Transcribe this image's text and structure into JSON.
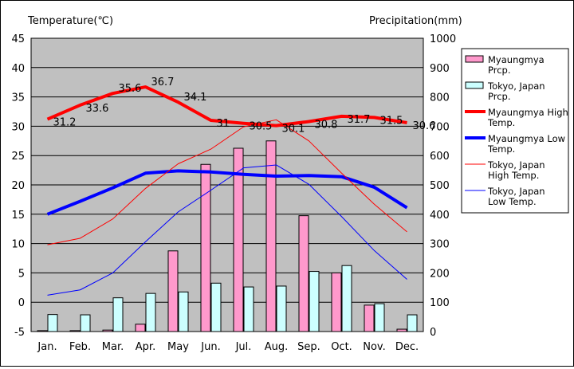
{
  "chart_data": {
    "type": "bar+line",
    "left_axis_title": "Temperature(℃)",
    "right_axis_title": "Precipitation(mm)",
    "left_ylim": [
      -5,
      45
    ],
    "right_ylim": [
      0,
      1000
    ],
    "left_ticks": [
      "45",
      "40",
      "35",
      "30",
      "25",
      "20",
      "15",
      "10",
      "5",
      "0",
      "-5"
    ],
    "right_ticks": [
      "1000",
      "900",
      "800",
      "700",
      "600",
      "500",
      "400",
      "300",
      "200",
      "100",
      "0"
    ],
    "categories": [
      "Jan.",
      "Feb.",
      "Mar.",
      "Apr.",
      "May",
      "Jun.",
      "Jul.",
      "Aug.",
      "Sep.",
      "Oct.",
      "Nov.",
      "Dec."
    ],
    "precipitation": [
      {
        "name": "Myaungmya Prcp.",
        "color": "#ff99cc",
        "values": [
          3,
          3,
          5,
          25,
          275,
          570,
          625,
          650,
          395,
          200,
          90,
          8
        ]
      },
      {
        "name": "Tokyo, Japan Prcp.",
        "color": "#ccffff",
        "values": [
          58,
          57,
          115,
          130,
          135,
          165,
          152,
          155,
          205,
          225,
          95,
          57
        ]
      }
    ],
    "temperature": [
      {
        "name": "Myaungmya High Temp.",
        "color": "#ff0000",
        "width": 4,
        "labels": true,
        "values": [
          31.2,
          33.6,
          35.6,
          36.7,
          34.1,
          31,
          30.5,
          30.1,
          30.8,
          31.7,
          31.5,
          30.6
        ]
      },
      {
        "name": "Myaungmya Low Temp.",
        "color": "#0000ff",
        "width": 4,
        "labels": false,
        "values": [
          15,
          17.2,
          19.5,
          22,
          22.4,
          22.2,
          21.8,
          21.5,
          21.6,
          21.4,
          19.6,
          16.1
        ]
      },
      {
        "name": "Tokyo, Japan High Temp.",
        "color": "#ff0000",
        "width": 1,
        "labels": false,
        "values": [
          9.8,
          10.9,
          14.2,
          19.4,
          23.6,
          26.1,
          29.9,
          31.1,
          27.5,
          22.0,
          16.7,
          12.0
        ]
      },
      {
        "name": "Tokyo, Japan Low Temp.",
        "color": "#0000ff",
        "width": 1,
        "labels": false,
        "values": [
          1.2,
          2.1,
          5.0,
          10.3,
          15.4,
          19.1,
          22.9,
          23.4,
          20.1,
          14.6,
          8.8,
          3.9
        ]
      }
    ],
    "legend": [
      {
        "name": "Myaungmya Prcp.",
        "lines": [
          "Myaungmya",
          "Prcp."
        ],
        "kind": "box",
        "color": "#ff99cc"
      },
      {
        "name": "Tokyo, Japan Prcp.",
        "lines": [
          "Tokyo, Japan",
          "Prcp."
        ],
        "kind": "box",
        "color": "#ccffff"
      },
      {
        "name": "Myaungmya High Temp.",
        "lines": [
          "Myaungmya High",
          "Temp."
        ],
        "kind": "line",
        "color": "#ff0000",
        "width": 4
      },
      {
        "name": "Myaungmya Low Temp.",
        "lines": [
          "Myaungmya Low",
          "Temp."
        ],
        "kind": "line",
        "color": "#0000ff",
        "width": 4
      },
      {
        "name": "Tokyo, Japan High Temp.",
        "lines": [
          "Tokyo, Japan",
          "High Temp."
        ],
        "kind": "line",
        "color": "#ff0000",
        "width": 1
      },
      {
        "name": "Tokyo, Japan Low Temp.",
        "lines": [
          "Tokyo, Japan",
          "Low Temp."
        ],
        "kind": "line",
        "color": "#0000ff",
        "width": 1
      }
    ],
    "legend_position": "right",
    "grid": true,
    "plot_background": "#c0c0c0"
  }
}
